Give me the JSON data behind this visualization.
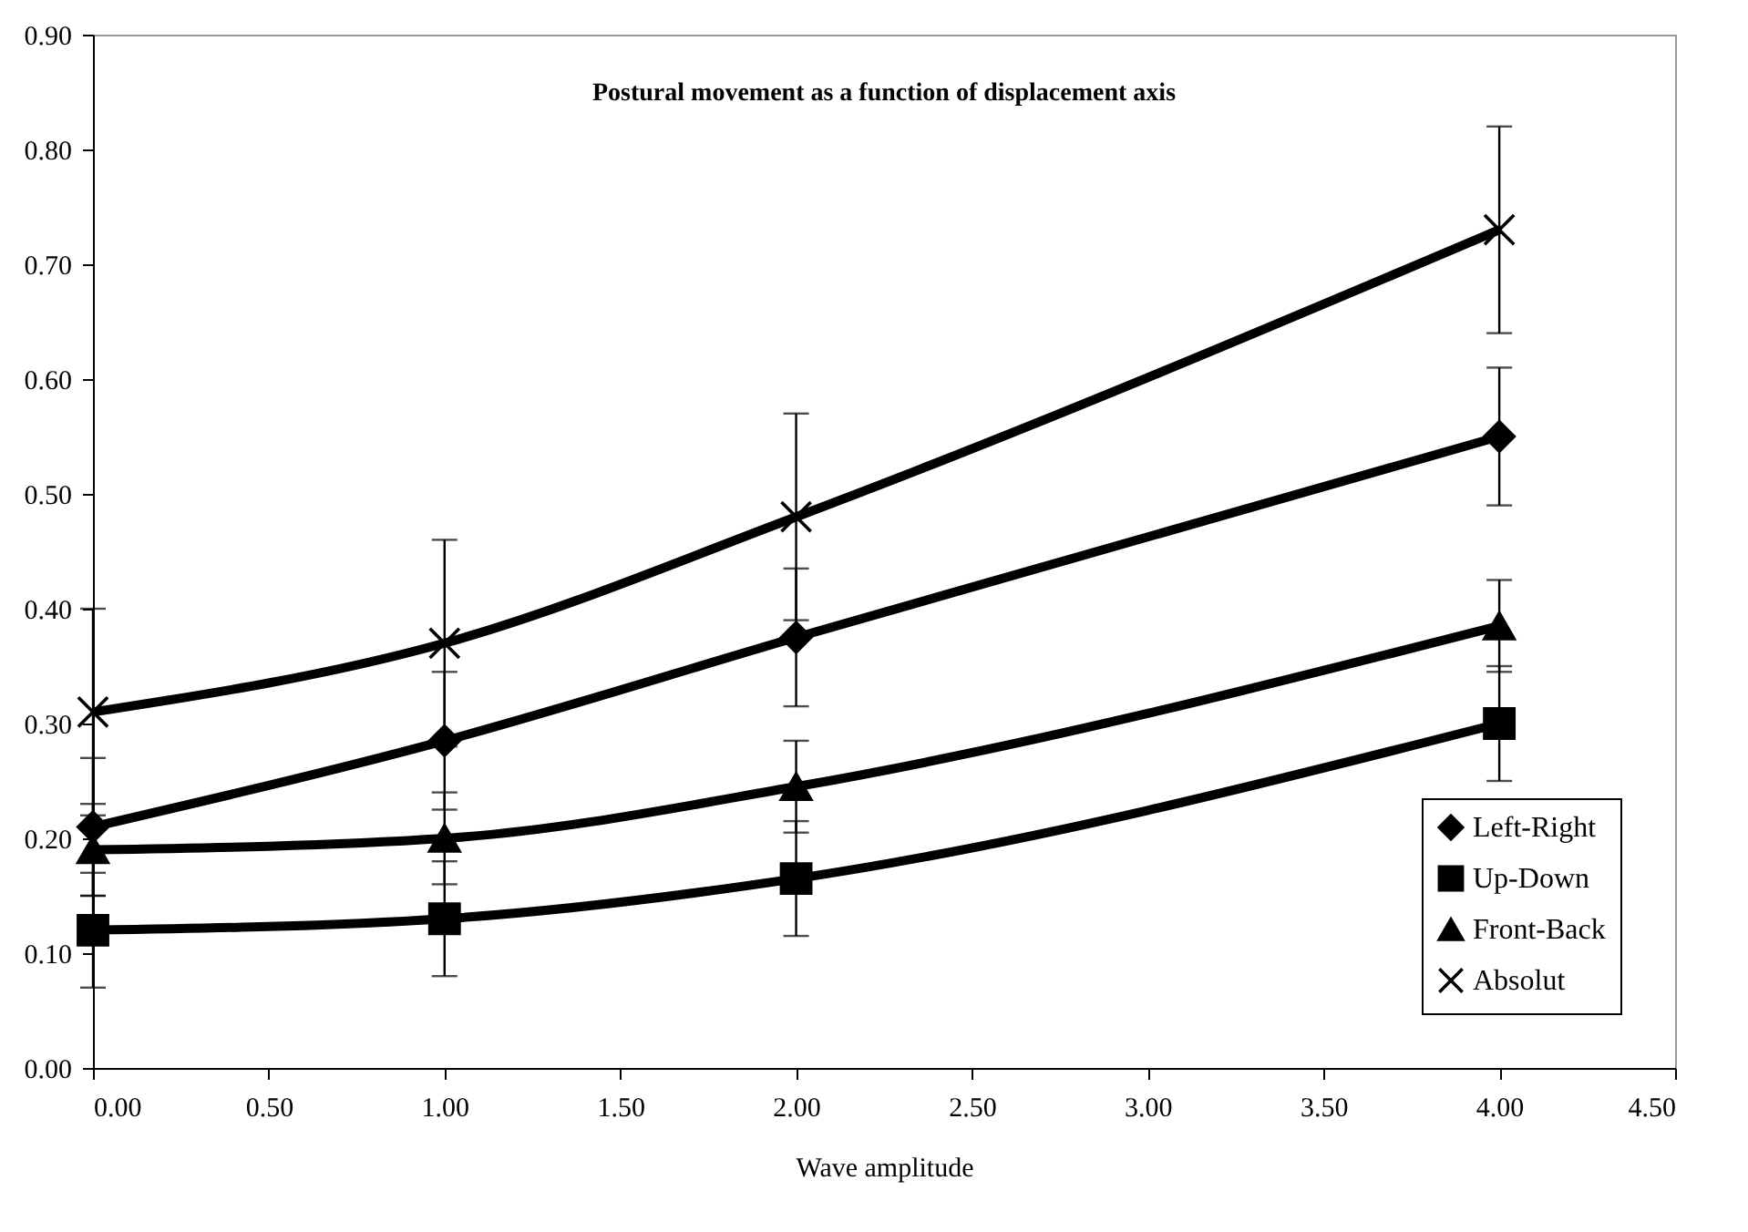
{
  "chart_data": {
    "type": "line",
    "title": "Postural movement as a function of displacement axis",
    "xlabel": "Wave amplitude",
    "x": [
      0,
      1,
      2,
      4
    ],
    "xlim": [
      0,
      4.5
    ],
    "xticks": [
      {
        "value": 0,
        "label": "0.00"
      },
      {
        "value": 0.5,
        "label": "0.50"
      },
      {
        "value": 1,
        "label": "1.00"
      },
      {
        "value": 1.5,
        "label": "1.50"
      },
      {
        "value": 2,
        "label": "2.00"
      },
      {
        "value": 2.5,
        "label": "2.50"
      },
      {
        "value": 3,
        "label": "3.00"
      },
      {
        "value": 3.5,
        "label": "3.50"
      },
      {
        "value": 4,
        "label": "4.00"
      },
      {
        "value": 4.5,
        "label": "4.50"
      }
    ],
    "ylim": [
      0,
      0.9
    ],
    "yticks": [
      {
        "value": 0,
        "label": "0.00"
      },
      {
        "value": 0.1,
        "label": "0.10"
      },
      {
        "value": 0.2,
        "label": "0.20"
      },
      {
        "value": 0.3,
        "label": "0.30"
      },
      {
        "value": 0.4,
        "label": "0.40"
      },
      {
        "value": 0.5,
        "label": "0.50"
      },
      {
        "value": 0.6,
        "label": "0.60"
      },
      {
        "value": 0.7,
        "label": "0.70"
      },
      {
        "value": 0.8,
        "label": "0.80"
      },
      {
        "value": 0.9,
        "label": "0.90"
      }
    ],
    "series": [
      {
        "name": "Left-Right",
        "color": "#000000",
        "marker": "diamond",
        "values": [
          0.21,
          0.285,
          0.375,
          0.55
        ],
        "errors": [
          0.06,
          0.06,
          0.06,
          0.06
        ]
      },
      {
        "name": "Up-Down",
        "color": "#000000",
        "marker": "square",
        "values": [
          0.12,
          0.13,
          0.165,
          0.3
        ],
        "errors": [
          0.05,
          0.05,
          0.05,
          0.05
        ]
      },
      {
        "name": "Front-Back",
        "color": "#000000",
        "marker": "triangle",
        "values": [
          0.19,
          0.2,
          0.245,
          0.385
        ],
        "errors": [
          0.04,
          0.04,
          0.04,
          0.04
        ]
      },
      {
        "name": "Absolut",
        "color": "#000000",
        "marker": "cross",
        "values": [
          0.31,
          0.37,
          0.48,
          0.73
        ],
        "errors": [
          0.09,
          0.09,
          0.09,
          0.09
        ]
      }
    ],
    "legend": "bottom right",
    "grid": false,
    "line_style": "solid"
  }
}
